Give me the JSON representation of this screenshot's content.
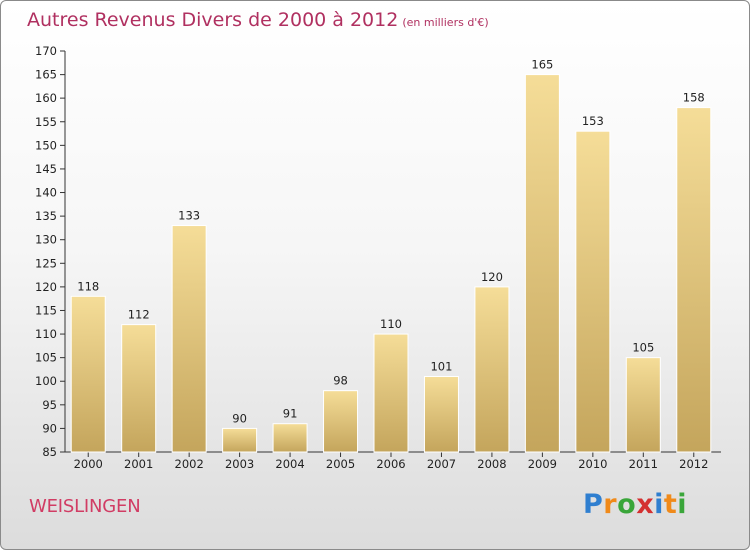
{
  "header": {
    "title": "Autres Revenus Divers de 2000 à 2012",
    "subtitle": "(en milliers d'€)"
  },
  "footer": {
    "place": "WEISLINGEN",
    "brand": [
      "P",
      "r",
      "o",
      "x",
      "i",
      "t",
      "i"
    ],
    "brand_colors": [
      "#2f7fd0",
      "#f08a1a",
      "#3aa63a",
      "#d43030",
      "#2f7fd0",
      "#f08a1a",
      "#3aa63a"
    ]
  },
  "chart_data": {
    "type": "bar",
    "title": "Autres Revenus Divers de 2000 à 2012",
    "subtitle": "(en milliers d'€)",
    "xlabel": "",
    "ylabel": "",
    "categories": [
      "2000",
      "2001",
      "2002",
      "2003",
      "2004",
      "2005",
      "2006",
      "2007",
      "2008",
      "2009",
      "2010",
      "2011",
      "2012"
    ],
    "values": [
      118,
      112,
      133,
      90,
      91,
      98,
      110,
      101,
      120,
      165,
      153,
      105,
      158
    ],
    "ylim": [
      85,
      170
    ],
    "yticks": [
      85,
      90,
      95,
      100,
      105,
      110,
      115,
      120,
      125,
      130,
      135,
      140,
      145,
      150,
      155,
      160,
      165,
      170
    ],
    "grid": false,
    "bar_color_top": "#f5dd98",
    "bar_color_bottom": "#c4a55c"
  }
}
